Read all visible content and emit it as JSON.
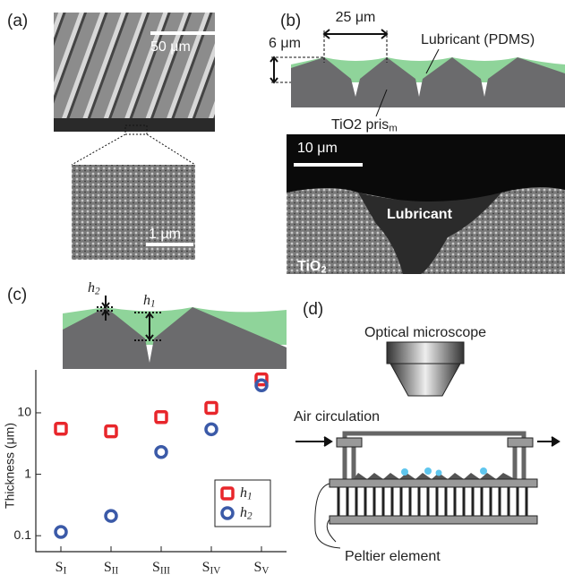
{
  "panels": {
    "a": {
      "label": "(a)",
      "scale_top": "50 μm",
      "scale_bottom": "1 μm"
    },
    "b": {
      "label": "(b)",
      "pitch": "25 μm",
      "height": "6 μm",
      "lubricant": "Lubricant (PDMS)",
      "prism": "TiO2 prism",
      "scale": "10 μm",
      "sem_lubricant": "Lubricant",
      "sem_tio2": "TiO2"
    },
    "c": {
      "label": "(c)",
      "h2": "h2",
      "h1": "h1"
    },
    "d": {
      "label": "(d)",
      "microscope": "Optical microscope",
      "air": "Air circulation",
      "peltier": "Peltier element"
    }
  },
  "chart_data": {
    "type": "scatter",
    "y_label": "Thickness (μm)",
    "log_y": true,
    "categories": [
      "SI",
      "SII",
      "SIII",
      "SIV",
      "SV"
    ],
    "series": [
      {
        "name": "h1",
        "color": "#e8262b",
        "marker": "square",
        "values": [
          5.5,
          5.0,
          8.5,
          12,
          35
        ]
      },
      {
        "name": "h2",
        "color": "#3b5aa8",
        "marker": "circle",
        "values": [
          0.115,
          0.21,
          2.3,
          5.4,
          28
        ]
      }
    ],
    "ylim": [
      0.055,
      50
    ],
    "yticks": [
      0.1,
      1,
      10
    ],
    "legend": "lower right"
  }
}
